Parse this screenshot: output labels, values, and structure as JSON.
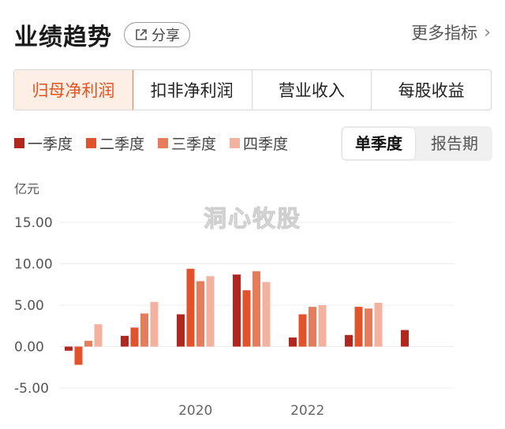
{
  "header": {
    "title": "业绩趋势",
    "share_label": "分享",
    "more_label": "更多指标",
    "more_arrow": "›"
  },
  "tabs": [
    {
      "label": "归母净利润",
      "active": true
    },
    {
      "label": "扣非净利润",
      "active": false
    },
    {
      "label": "营业收入",
      "active": false
    },
    {
      "label": "每股收益",
      "active": false
    }
  ],
  "legend": [
    {
      "label": "一季度",
      "color": "#b3261e"
    },
    {
      "label": "二季度",
      "color": "#e2522b"
    },
    {
      "label": "三季度",
      "color": "#e57c5c"
    },
    {
      "label": "四季度",
      "color": "#f3b1a0"
    }
  ],
  "period": {
    "options": [
      "单季度",
      "报告期"
    ],
    "active": "单季度"
  },
  "watermark": "洞心牧股",
  "chart_data": {
    "type": "bar",
    "unit_label": "亿元",
    "ylim": [
      -5,
      15
    ],
    "yticks": [
      "15.00",
      "10.00",
      "5.00",
      "0.00",
      "-5.00"
    ],
    "ytick_values": [
      15,
      10,
      5,
      0,
      -5
    ],
    "xtick_labels": [
      {
        "label": "2020",
        "group_index": 2
      },
      {
        "label": "2022",
        "group_index": 4
      }
    ],
    "grid": true,
    "series": [
      {
        "name": "一季度",
        "color": "#b3261e",
        "values": [
          -0.5,
          1.3,
          3.9,
          8.7,
          1.1,
          1.4,
          2.0
        ]
      },
      {
        "name": "二季度",
        "color": "#e2522b",
        "values": [
          -2.2,
          2.3,
          9.4,
          6.8,
          3.9,
          4.8,
          null
        ]
      },
      {
        "name": "三季度",
        "color": "#e57c5c",
        "values": [
          0.7,
          4.0,
          7.9,
          9.1,
          4.8,
          4.6,
          null
        ]
      },
      {
        "name": "四季度",
        "color": "#f3b1a0",
        "values": [
          2.7,
          5.4,
          8.5,
          7.8,
          5.0,
          5.3,
          null
        ]
      }
    ]
  }
}
